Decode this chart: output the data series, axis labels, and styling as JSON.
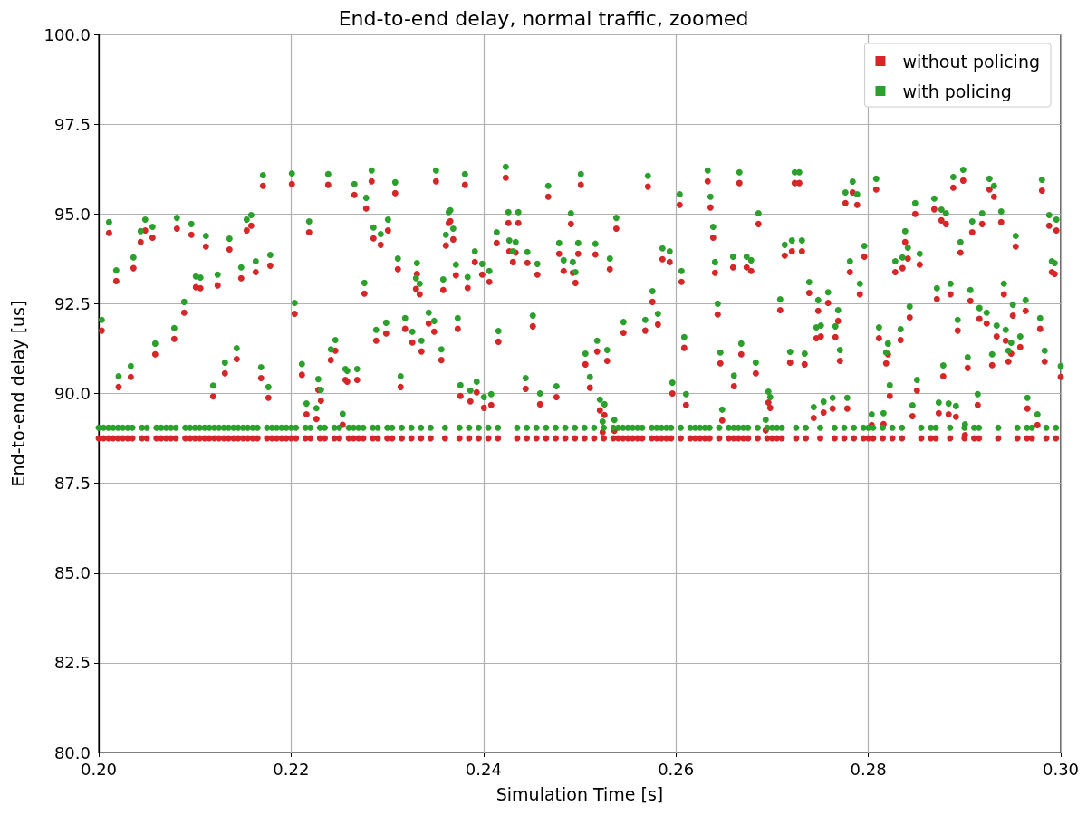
{
  "chart_data": {
    "type": "scatter",
    "title": "End-to-end delay, normal traffic, zoomed",
    "xlabel": "Simulation Time [s]",
    "ylabel": "End-to-end delay [us]",
    "xlim": [
      0.2,
      0.3
    ],
    "xticks": [
      {
        "value": 0.2,
        "label": "0.20"
      },
      {
        "value": 0.22,
        "label": "0.22"
      },
      {
        "value": 0.24,
        "label": "0.24"
      },
      {
        "value": 0.26,
        "label": "0.26"
      },
      {
        "value": 0.28,
        "label": "0.28"
      },
      {
        "value": 0.3,
        "label": "0.30"
      }
    ],
    "ylim": [
      80,
      100
    ],
    "yticks": [
      {
        "value": 80,
        "label": "80.0"
      },
      {
        "value": 82.5,
        "label": "82.5"
      },
      {
        "value": 85,
        "label": "85.0"
      },
      {
        "value": 87.5,
        "label": "87.5"
      },
      {
        "value": 90,
        "label": "90.0"
      },
      {
        "value": 92.5,
        "label": "92.5"
      },
      {
        "value": 95,
        "label": "95.0"
      },
      {
        "value": 97.5,
        "label": "97.5"
      },
      {
        "value": 100,
        "label": "100.0"
      }
    ],
    "grid": true,
    "legend": "top right",
    "marker": "circle",
    "x": [
      0.20031,
      0.20107,
      0.20182,
      0.20207,
      0.20333,
      0.20361,
      0.20436,
      0.20483,
      0.20559,
      0.20587,
      0.20785,
      0.20813,
      0.20888,
      0.20963,
      0.2101,
      0.21057,
      0.21114,
      0.21189,
      0.21236,
      0.21312,
      0.21359,
      0.21434,
      0.21481,
      0.21538,
      0.21585,
      0.21632,
      0.21688,
      0.21707,
      0.21764,
      0.21783,
      0.22008,
      0.22037,
      0.22112,
      0.2216,
      0.22187,
      0.22263,
      0.22282,
      0.2231,
      0.22385,
      0.22413,
      0.2246,
      0.22536,
      0.22564,
      0.22583,
      0.22658,
      0.22686,
      0.22762,
      0.2278,
      0.22837,
      0.22856,
      0.22884,
      0.22931,
      0.22988,
      0.23007,
      0.23082,
      0.2311,
      0.23138,
      0.23185,
      0.2326,
      0.23298,
      0.23308,
      0.23336,
      0.23355,
      0.2343,
      0.23487,
      0.23506,
      0.23562,
      0.23581,
      0.23609,
      0.23638,
      0.23655,
      0.23685,
      0.23713,
      0.23732,
      0.2376,
      0.23807,
      0.23835,
      0.23863,
      0.2391,
      0.23929,
      0.23986,
      0.24004,
      0.2406,
      0.2408,
      0.24137,
      0.24155,
      0.24231,
      0.24259,
      0.24268,
      0.24306,
      0.24334,
      0.24362,
      0.24438,
      0.24456,
      0.24513,
      0.2456,
      0.24588,
      0.24673,
      0.24758,
      0.24786,
      0.24833,
      0.24909,
      0.24928,
      0.24956,
      0.24984,
      0.25012,
      0.25059,
      0.25106,
      0.25163,
      0.25181,
      0.2521,
      0.25238,
      0.25257,
      0.25285,
      0.25313,
      0.2536,
      0.2538,
      0.25455,
      0.25681,
      0.25709,
      0.25756,
      0.25813,
      0.2586,
      0.25935,
      0.25963,
      0.26039,
      0.26058,
      0.26086,
      0.26105,
      0.2633,
      0.26359,
      0.26387,
      0.26406,
      0.26434,
      0.26462,
      0.26481,
      0.26594,
      0.26603,
      0.2666,
      0.26679,
      0.26735,
      0.26782,
      0.2683,
      0.26858,
      0.26933,
      0.26961,
      0.2698,
      0.27084,
      0.27131,
      0.27187,
      0.27206,
      0.27235,
      0.27282,
      0.2731,
      0.27338,
      0.27385,
      0.27432,
      0.2746,
      0.27479,
      0.27507,
      0.27535,
      0.27582,
      0.27629,
      0.27658,
      0.27686,
      0.27705,
      0.27762,
      0.27781,
      0.27809,
      0.27837,
      0.27884,
      0.27912,
      0.27959,
      0.28035,
      0.28082,
      0.28111,
      0.28158,
      0.28185,
      0.28204,
      0.28223,
      0.2828,
      0.28336,
      0.28355,
      0.28383,
      0.28411,
      0.2843,
      0.28459,
      0.28487,
      0.28506,
      0.28534,
      0.28685,
      0.28713,
      0.28732,
      0.2876,
      0.28779,
      0.28807,
      0.28835,
      0.28854,
      0.28883,
      0.28911,
      0.28929,
      0.28958,
      0.28986,
      0.29005,
      0.29033,
      0.29061,
      0.2908,
      0.29137,
      0.29155,
      0.29183,
      0.2923,
      0.29259,
      0.29287,
      0.29306,
      0.29334,
      0.29381,
      0.29409,
      0.29428,
      0.29456,
      0.29485,
      0.29503,
      0.29532,
      0.29579,
      0.29635,
      0.29654,
      0.29758,
      0.29786,
      0.29805,
      0.29833,
      0.2988,
      0.29908,
      0.29937,
      0.29955,
      0.3,
      0.2,
      0.2005,
      0.201,
      0.2015,
      0.202,
      0.2025,
      0.203,
      0.2035,
      0.2045,
      0.205,
      0.206,
      0.2065,
      0.207,
      0.2075,
      0.208,
      0.209,
      0.2095,
      0.21,
      0.2105,
      0.211,
      0.2115,
      0.212,
      0.2125,
      0.213,
      0.2135,
      0.214,
      0.2145,
      0.215,
      0.2155,
      0.216,
      0.2165,
      0.2175,
      0.218,
      0.2185,
      0.219,
      0.2195,
      0.22,
      0.2205,
      0.2215,
      0.222,
      0.223,
      0.2235,
      0.2245,
      0.225,
      0.226,
      0.2265,
      0.227,
      0.2275,
      0.2285,
      0.229,
      0.23,
      0.2305,
      0.2315,
      0.2325,
      0.2335,
      0.2345,
      0.236,
      0.2375,
      0.2385,
      0.2395,
      0.2405,
      0.2415,
      0.2435,
      0.2445,
      0.2455,
      0.2465,
      0.2475,
      0.2485,
      0.2495,
      0.2505,
      0.2515,
      0.2525,
      0.2535,
      0.254,
      0.2545,
      0.255,
      0.2555,
      0.256,
      0.2565,
      0.2575,
      0.258,
      0.2585,
      0.259,
      0.2595,
      0.2605,
      0.2615,
      0.262,
      0.2625,
      0.263,
      0.2635,
      0.2645,
      0.2655,
      0.266,
      0.2665,
      0.267,
      0.2675,
      0.2685,
      0.2695,
      0.27,
      0.2705,
      0.271,
      0.2725,
      0.2735,
      0.275,
      0.2765,
      0.2775,
      0.2785,
      0.2795,
      0.28,
      0.2805,
      0.2815,
      0.2825,
      0.2835,
      0.2855,
      0.2865,
      0.287,
      0.2885,
      0.29,
      0.291,
      0.2915,
      0.2935,
      0.2955,
      0.2965,
      0.297,
      0.2985,
      0.2995
    ],
    "series": [
      {
        "name": "without policing",
        "color": "#d62728",
        "values": [
          91.75,
          94.47,
          93.13,
          90.18,
          90.46,
          93.49,
          94.22,
          94.54,
          94.34,
          91.09,
          91.52,
          94.59,
          92.25,
          94.42,
          92.96,
          92.93,
          94.09,
          89.92,
          93.01,
          90.56,
          94.01,
          90.96,
          93.21,
          94.54,
          94.67,
          93.38,
          90.43,
          95.78,
          89.88,
          93.56,
          95.83,
          92.22,
          90.52,
          89.42,
          94.49,
          89.29,
          90.1,
          89.8,
          95.81,
          90.93,
          91.19,
          89.13,
          90.38,
          90.33,
          95.53,
          90.38,
          92.78,
          95.15,
          95.91,
          94.32,
          91.47,
          94.14,
          91.67,
          94.54,
          95.58,
          93.46,
          90.18,
          91.8,
          91.42,
          92.91,
          93.33,
          92.76,
          91.17,
          91.95,
          91.72,
          95.91,
          90.93,
          92.88,
          94.12,
          94.75,
          94.8,
          94.29,
          93.29,
          91.8,
          89.93,
          95.81,
          92.94,
          89.78,
          93.66,
          90.03,
          93.31,
          89.6,
          93.11,
          89.68,
          94.19,
          91.44,
          96.01,
          94.75,
          93.96,
          93.66,
          93.92,
          94.75,
          90.13,
          93.64,
          91.87,
          93.31,
          89.7,
          95.48,
          89.9,
          93.89,
          93.41,
          94.72,
          93.36,
          93.08,
          93.89,
          95.81,
          90.81,
          90.16,
          93.87,
          91.17,
          89.53,
          88.92,
          89.4,
          90.91,
          93.46,
          88.96,
          94.59,
          91.69,
          91.75,
          95.76,
          92.55,
          91.92,
          93.74,
          93.66,
          90.0,
          95.25,
          93.11,
          91.27,
          89.68,
          95.91,
          95.18,
          94.34,
          93.36,
          92.2,
          90.84,
          89.25,
          93.51,
          90.2,
          95.86,
          91.09,
          93.51,
          93.41,
          90.56,
          94.72,
          88.97,
          89.75,
          89.6,
          92.32,
          93.84,
          90.86,
          93.96,
          95.86,
          95.86,
          93.96,
          90.81,
          92.8,
          89.32,
          91.54,
          92.3,
          91.59,
          89.47,
          92.52,
          89.58,
          91.57,
          92.02,
          90.91,
          95.3,
          89.58,
          93.38,
          95.6,
          95.25,
          92.76,
          93.81,
          89.12,
          95.68,
          91.54,
          89.15,
          90.84,
          91.09,
          89.93,
          93.38,
          91.49,
          93.49,
          94.22,
          93.76,
          92.12,
          89.37,
          95.0,
          90.08,
          93.59,
          95.13,
          92.63,
          89.45,
          94.82,
          90.48,
          94.72,
          89.42,
          92.76,
          95.73,
          89.35,
          91.75,
          93.92,
          95.93,
          88.84,
          90.71,
          92.58,
          94.49,
          89.68,
          92.08,
          94.72,
          91.95,
          95.68,
          90.79,
          95.48,
          91.59,
          94.77,
          92.76,
          91.47,
          90.89,
          91.11,
          92.17,
          94.09,
          91.29,
          92.3,
          89.58,
          89.12,
          91.8,
          95.65,
          90.89,
          94.67,
          93.38,
          93.33,
          94.54,
          90.46,
          88.75,
          88.75,
          88.75,
          88.75,
          88.75,
          88.75,
          88.75,
          88.75,
          88.75,
          88.75,
          88.75,
          88.75,
          88.75,
          88.75,
          88.75,
          88.75,
          88.75,
          88.75,
          88.75,
          88.75,
          88.75,
          88.75,
          88.75,
          88.75,
          88.75,
          88.75,
          88.75,
          88.75,
          88.75,
          88.75,
          88.75,
          88.75,
          88.75,
          88.75,
          88.75,
          88.75,
          88.75,
          88.75,
          88.75,
          88.75,
          88.75,
          88.75,
          88.75,
          88.75,
          88.75,
          88.75,
          88.75,
          88.75,
          88.75,
          88.75,
          88.75,
          88.75,
          88.75,
          88.75,
          88.75,
          88.75,
          88.75,
          88.75,
          88.75,
          88.75,
          88.75,
          88.75,
          88.75,
          88.75,
          88.75,
          88.75,
          88.75,
          88.75,
          88.75,
          88.75,
          88.75,
          88.75,
          88.75,
          88.75,
          88.75,
          88.75,
          88.75,
          88.75,
          88.75,
          88.75,
          88.75,
          88.75,
          88.75,
          88.75,
          88.75,
          88.75,
          88.75,
          88.75,
          88.75,
          88.75,
          88.75,
          88.75,
          88.75,
          88.75,
          88.75,
          88.75,
          88.75,
          88.75,
          88.75,
          88.75,
          88.75,
          88.75,
          88.75,
          88.75,
          88.75,
          88.75,
          88.75,
          88.75,
          88.75,
          88.75,
          88.75,
          88.75,
          88.75,
          88.75,
          88.75,
          88.75,
          88.75,
          88.75,
          88.75,
          88.75,
          88.75,
          88.75,
          88.75,
          88.75,
          88.75,
          88.75
        ]
      },
      {
        "name": "with policing",
        "color": "#2ca02c",
        "values": [
          92.05,
          94.77,
          93.43,
          90.48,
          90.76,
          93.79,
          94.52,
          94.84,
          94.64,
          91.39,
          91.82,
          94.89,
          92.55,
          94.72,
          93.26,
          93.23,
          94.39,
          90.22,
          93.31,
          90.86,
          94.31,
          91.26,
          93.51,
          94.84,
          94.97,
          93.68,
          90.73,
          96.08,
          90.18,
          93.86,
          96.13,
          92.52,
          90.82,
          89.72,
          94.79,
          89.59,
          90.4,
          90.1,
          96.11,
          91.23,
          91.49,
          89.43,
          90.68,
          90.63,
          95.83,
          90.68,
          93.08,
          95.45,
          96.21,
          94.62,
          91.77,
          94.44,
          91.97,
          94.84,
          95.88,
          93.76,
          90.48,
          92.1,
          91.72,
          93.21,
          93.63,
          93.06,
          91.47,
          92.25,
          92.02,
          96.21,
          91.23,
          93.18,
          94.42,
          95.05,
          95.1,
          94.59,
          93.59,
          92.1,
          90.23,
          96.11,
          93.24,
          90.08,
          93.96,
          90.33,
          93.61,
          89.9,
          93.41,
          89.98,
          94.49,
          91.74,
          96.31,
          95.05,
          94.26,
          93.96,
          94.22,
          95.05,
          90.43,
          93.94,
          92.17,
          93.61,
          90.0,
          95.78,
          90.2,
          94.19,
          93.71,
          95.02,
          93.66,
          93.38,
          94.19,
          96.11,
          91.11,
          90.46,
          94.17,
          91.47,
          89.83,
          89.22,
          89.7,
          91.21,
          93.76,
          89.26,
          94.89,
          91.99,
          92.05,
          96.06,
          92.85,
          92.22,
          94.04,
          93.96,
          90.3,
          95.55,
          93.41,
          91.57,
          89.98,
          96.21,
          95.48,
          94.64,
          93.66,
          92.5,
          91.14,
          89.55,
          93.81,
          90.5,
          96.16,
          91.39,
          93.81,
          93.71,
          90.86,
          95.02,
          89.27,
          90.05,
          89.9,
          92.62,
          94.14,
          91.16,
          94.26,
          96.16,
          96.16,
          94.26,
          91.11,
          93.1,
          89.62,
          91.84,
          92.6,
          91.89,
          89.77,
          92.82,
          89.88,
          91.87,
          92.32,
          91.21,
          95.6,
          89.88,
          93.68,
          95.9,
          95.55,
          93.06,
          94.11,
          89.42,
          95.98,
          91.84,
          89.45,
          91.14,
          91.39,
          90.23,
          93.68,
          91.79,
          93.79,
          94.52,
          94.06,
          92.42,
          89.67,
          95.3,
          90.38,
          93.89,
          95.43,
          92.93,
          89.75,
          95.12,
          90.78,
          95.02,
          89.72,
          93.06,
          96.03,
          89.65,
          92.05,
          94.22,
          96.23,
          89.14,
          91.01,
          92.88,
          94.79,
          89.98,
          92.38,
          95.02,
          92.25,
          95.98,
          91.09,
          95.78,
          91.89,
          95.07,
          93.06,
          91.77,
          91.19,
          91.41,
          92.47,
          94.39,
          91.59,
          92.6,
          89.88,
          89.42,
          92.1,
          95.95,
          91.19,
          94.97,
          93.68,
          93.63,
          94.84,
          90.76,
          89.05,
          89.05,
          89.05,
          89.05,
          89.05,
          89.05,
          89.05,
          89.05,
          89.05,
          89.05,
          89.05,
          89.05,
          89.05,
          89.05,
          89.05,
          89.05,
          89.05,
          89.05,
          89.05,
          89.05,
          89.05,
          89.05,
          89.05,
          89.05,
          89.05,
          89.05,
          89.05,
          89.05,
          89.05,
          89.05,
          89.05,
          89.05,
          89.05,
          89.05,
          89.05,
          89.05,
          89.05,
          89.05,
          89.05,
          89.05,
          89.05,
          89.05,
          89.05,
          89.05,
          89.05,
          89.05,
          89.05,
          89.05,
          89.05,
          89.05,
          89.05,
          89.05,
          89.05,
          89.05,
          89.05,
          89.05,
          89.05,
          89.05,
          89.05,
          89.05,
          89.05,
          89.05,
          89.05,
          89.05,
          89.05,
          89.05,
          89.05,
          89.05,
          89.05,
          89.05,
          89.05,
          89.05,
          89.05,
          89.05,
          89.05,
          89.05,
          89.05,
          89.05,
          89.05,
          89.05,
          89.05,
          89.05,
          89.05,
          89.05,
          89.05,
          89.05,
          89.05,
          89.05,
          89.05,
          89.05,
          89.05,
          89.05,
          89.05,
          89.05,
          89.05,
          89.05,
          89.05,
          89.05,
          89.05,
          89.05,
          89.05,
          89.05,
          89.05,
          89.05,
          89.05,
          89.05,
          89.05,
          89.05,
          89.05,
          89.05,
          89.05,
          89.05,
          89.05,
          89.05,
          89.05,
          89.05,
          89.05,
          89.05,
          89.05,
          89.05,
          89.05,
          89.05,
          89.05,
          89.05,
          89.05,
          89.05
        ]
      }
    ]
  }
}
